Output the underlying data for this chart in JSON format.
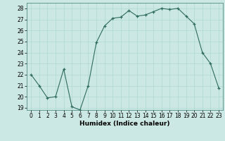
{
  "x": [
    0,
    1,
    2,
    3,
    4,
    5,
    6,
    7,
    8,
    9,
    10,
    11,
    12,
    13,
    14,
    15,
    16,
    17,
    18,
    19,
    20,
    21,
    22,
    23
  ],
  "y": [
    22.0,
    21.0,
    19.9,
    20.0,
    22.5,
    19.1,
    18.8,
    21.0,
    24.9,
    26.4,
    27.1,
    27.2,
    27.8,
    27.3,
    27.4,
    27.7,
    28.0,
    27.9,
    28.0,
    27.3,
    26.6,
    24.0,
    23.0,
    20.8
  ],
  "line_color": "#2e6b5e",
  "marker": "+",
  "bg_color": "#cce8e4",
  "grid_color": "#b0d8d2",
  "xlabel": "Humidex (Indice chaleur)",
  "ylim": [
    18.8,
    28.5
  ],
  "xlim": [
    -0.5,
    23.5
  ],
  "yticks": [
    19,
    20,
    21,
    22,
    23,
    24,
    25,
    26,
    27,
    28
  ],
  "xticks": [
    0,
    1,
    2,
    3,
    4,
    5,
    6,
    7,
    8,
    9,
    10,
    11,
    12,
    13,
    14,
    15,
    16,
    17,
    18,
    19,
    20,
    21,
    22,
    23
  ],
  "label_fontsize": 6.5,
  "tick_fontsize": 5.5
}
